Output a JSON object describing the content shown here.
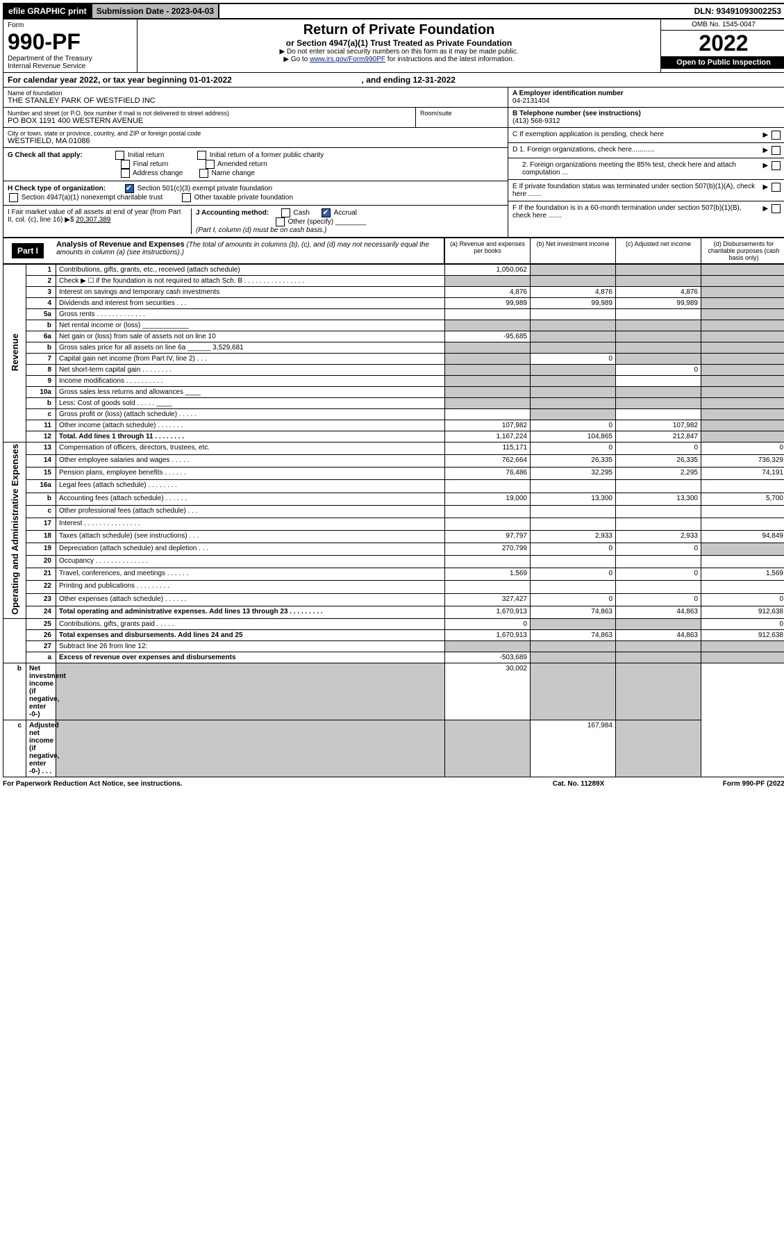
{
  "topbar": {
    "efile": "efile GRAPHIC print",
    "submission": "Submission Date - 2023-04-03",
    "dln": "DLN: 93491093002253"
  },
  "header": {
    "form_label": "Form",
    "form_no": "990-PF",
    "dept": "Department of the Treasury",
    "irs": "Internal Revenue Service",
    "title": "Return of Private Foundation",
    "sub1": "or Section 4947(a)(1) Trust Treated as Private Foundation",
    "sub2_a": "▶ Do not enter social security numbers on this form as it may be made public.",
    "sub2_b": "▶ Go to ",
    "sub2_link": "www.irs.gov/Form990PF",
    "sub2_c": " for instructions and the latest information.",
    "omb": "OMB No. 1545-0047",
    "year": "2022",
    "open": "Open to Public Inspection"
  },
  "cal_year": {
    "prefix": "For calendar year 2022, or tax year beginning ",
    "begin": "01-01-2022",
    "mid": " , and ending ",
    "end": "12-31-2022"
  },
  "foundation": {
    "name_label": "Name of foundation",
    "name": "THE STANLEY PARK OF WESTFIELD INC",
    "addr_label": "Number and street (or P.O. box number if mail is not delivered to street address)",
    "addr": "PO BOX 1191 400 WESTERN AVENUE",
    "room_label": "Room/suite",
    "city_label": "City or town, state or province, country, and ZIP or foreign postal code",
    "city": "WESTFIELD, MA  01086"
  },
  "right": {
    "a_label": "A Employer identification number",
    "a_val": "04-2131404",
    "b_label": "B Telephone number (see instructions)",
    "b_val": "(413) 568-9312",
    "c_label": "C If exemption application is pending, check here",
    "d1": "D 1. Foreign organizations, check here............",
    "d2": "2. Foreign organizations meeting the 85% test, check here and attach computation ...",
    "e": "E  If private foundation status was terminated under section 507(b)(1)(A), check here .......",
    "f": "F  If the foundation is in a 60-month termination under section 507(b)(1)(B), check here .......",
    "arrow": "▶"
  },
  "g": {
    "label": "G Check all that apply:",
    "opts": [
      "Initial return",
      "Final return",
      "Address change",
      "Initial return of a former public charity",
      "Amended return",
      "Name change"
    ]
  },
  "h": {
    "label": "H Check type of organization:",
    "opt1": "Section 501(c)(3) exempt private foundation",
    "opt2": "Section 4947(a)(1) nonexempt charitable trust",
    "opt3": "Other taxable private foundation"
  },
  "i": {
    "label_a": "I Fair market value of all assets at end of year (from Part II, col. (c), line 16) ",
    "arrow": "▶$ ",
    "value": "20,307,389"
  },
  "j": {
    "label": "J Accounting method:",
    "cash": "Cash",
    "accrual": "Accrual",
    "other": "Other (specify)",
    "note": "(Part I, column (d) must be on cash basis.)"
  },
  "part1": {
    "title": "Part I",
    "heading": "Analysis of Revenue and Expenses",
    "note": " (The total of amounts in columns (b), (c), and (d) may not necessarily equal the amounts in column (a) (see instructions).)",
    "col_a": "(a) Revenue and expenses per books",
    "col_b": "(b) Net investment income",
    "col_c": "(c) Adjusted net income",
    "col_d": "(d) Disbursements for charitable purposes (cash basis only)"
  },
  "side_labels": {
    "revenue": "Revenue",
    "expenses": "Operating and Administrative Expenses"
  },
  "rows": [
    {
      "n": "1",
      "desc": "Contributions, gifts, grants, etc., received (attach schedule)",
      "a": "1,050,062",
      "b": "",
      "c": "",
      "d": "",
      "grey": [
        "b",
        "c",
        "d"
      ]
    },
    {
      "n": "2",
      "desc": "Check ▶ ☐ if the foundation is not required to attach Sch. B  .  .  .  .  .  .  .  .  .  .  .  .  .  .  .  .",
      "a": "",
      "b": "",
      "c": "",
      "d": "",
      "grey": [
        "a",
        "b",
        "c",
        "d"
      ]
    },
    {
      "n": "3",
      "desc": "Interest on savings and temporary cash investments",
      "a": "4,876",
      "b": "4,876",
      "c": "4,876",
      "d": "",
      "grey": [
        "d"
      ]
    },
    {
      "n": "4",
      "desc": "Dividends and interest from securities  .  .  .",
      "a": "99,989",
      "b": "99,989",
      "c": "99,989",
      "d": "",
      "grey": [
        "d"
      ]
    },
    {
      "n": "5a",
      "desc": "Gross rents  .  .  .  .  .  .  .  .  .  .  .  .  .",
      "a": "",
      "b": "",
      "c": "",
      "d": "",
      "grey": [
        "d"
      ]
    },
    {
      "n": "b",
      "desc": "Net rental income or (loss)  ____________",
      "a": "",
      "b": "",
      "c": "",
      "d": "",
      "grey": [
        "a",
        "b",
        "c",
        "d"
      ]
    },
    {
      "n": "6a",
      "desc": "Net gain or (loss) from sale of assets not on line 10",
      "a": "-95,685",
      "b": "",
      "c": "",
      "d": "",
      "grey": [
        "b",
        "c",
        "d"
      ]
    },
    {
      "n": "b",
      "desc": "Gross sales price for all assets on line 6a ______ 3,529,681",
      "a": "",
      "b": "",
      "c": "",
      "d": "",
      "grey": [
        "a",
        "b",
        "c",
        "d"
      ]
    },
    {
      "n": "7",
      "desc": "Capital gain net income (from Part IV, line 2)  .  .  .",
      "a": "",
      "b": "0",
      "c": "",
      "d": "",
      "grey": [
        "a",
        "c",
        "d"
      ]
    },
    {
      "n": "8",
      "desc": "Net short-term capital gain  .  .  .  .  .  .  .  .",
      "a": "",
      "b": "",
      "c": "0",
      "d": "",
      "grey": [
        "a",
        "b",
        "d"
      ]
    },
    {
      "n": "9",
      "desc": "Income modifications  .  .  .  .  .  .  .  .  .  .",
      "a": "",
      "b": "",
      "c": "",
      "d": "",
      "grey": [
        "a",
        "b",
        "d"
      ]
    },
    {
      "n": "10a",
      "desc": "Gross sales less returns and allowances  ____",
      "a": "",
      "b": "",
      "c": "",
      "d": "",
      "grey": [
        "a",
        "b",
        "c",
        "d"
      ]
    },
    {
      "n": "b",
      "desc": "Less: Cost of goods sold  .  .  .  .  .  ____",
      "a": "",
      "b": "",
      "c": "",
      "d": "",
      "grey": [
        "a",
        "b",
        "c",
        "d"
      ]
    },
    {
      "n": "c",
      "desc": "Gross profit or (loss) (attach schedule)  .  .  .  .  .",
      "a": "",
      "b": "",
      "c": "",
      "d": "",
      "grey": [
        "b",
        "d"
      ]
    },
    {
      "n": "11",
      "desc": "Other income (attach schedule)  .  .  .  .  .  .  .",
      "a": "107,982",
      "b": "0",
      "c": "107,982",
      "d": "",
      "grey": [
        "d"
      ]
    },
    {
      "n": "12",
      "desc": "Total. Add lines 1 through 11  .  .  .  .  .  .  .  .",
      "bold": true,
      "a": "1,167,224",
      "b": "104,865",
      "c": "212,847",
      "d": "",
      "grey": [
        "d"
      ]
    },
    {
      "n": "13",
      "desc": "Compensation of officers, directors, trustees, etc.",
      "a": "115,171",
      "b": "0",
      "c": "0",
      "d": "0"
    },
    {
      "n": "14",
      "desc": "Other employee salaries and wages  .  .  .  .  .",
      "a": "762,664",
      "b": "26,335",
      "c": "26,335",
      "d": "736,329"
    },
    {
      "n": "15",
      "desc": "Pension plans, employee benefits  .  .  .  .  .  .",
      "a": "76,486",
      "b": "32,295",
      "c": "2,295",
      "d": "74,191"
    },
    {
      "n": "16a",
      "desc": "Legal fees (attach schedule)  .  .  .  .  .  .  .  .",
      "a": "",
      "b": "",
      "c": "",
      "d": ""
    },
    {
      "n": "b",
      "desc": "Accounting fees (attach schedule)  .  .  .  .  .  .",
      "a": "19,000",
      "b": "13,300",
      "c": "13,300",
      "d": "5,700"
    },
    {
      "n": "c",
      "desc": "Other professional fees (attach schedule)  .  .  .",
      "a": "",
      "b": "",
      "c": "",
      "d": ""
    },
    {
      "n": "17",
      "desc": "Interest  .  .  .  .  .  .  .  .  .  .  .  .  .  .  .",
      "a": "",
      "b": "",
      "c": "",
      "d": ""
    },
    {
      "n": "18",
      "desc": "Taxes (attach schedule) (see instructions)  .  .  .",
      "a": "97,797",
      "b": "2,933",
      "c": "2,933",
      "d": "94,849"
    },
    {
      "n": "19",
      "desc": "Depreciation (attach schedule) and depletion  .  .  .",
      "a": "270,799",
      "b": "0",
      "c": "0",
      "d": "",
      "grey": [
        "d"
      ]
    },
    {
      "n": "20",
      "desc": "Occupancy  .  .  .  .  .  .  .  .  .  .  .  .  .  .",
      "a": "",
      "b": "",
      "c": "",
      "d": ""
    },
    {
      "n": "21",
      "desc": "Travel, conferences, and meetings  .  .  .  .  .  .",
      "a": "1,569",
      "b": "0",
      "c": "0",
      "d": "1,569"
    },
    {
      "n": "22",
      "desc": "Printing and publications  .  .  .  .  .  .  .  .  .",
      "a": "",
      "b": "",
      "c": "",
      "d": ""
    },
    {
      "n": "23",
      "desc": "Other expenses (attach schedule)  .  .  .  .  .  .",
      "a": "327,427",
      "b": "0",
      "c": "0",
      "d": "0"
    },
    {
      "n": "24",
      "desc": "Total operating and administrative expenses. Add lines 13 through 23  .  .  .  .  .  .  .  .  .",
      "bold": true,
      "a": "1,670,913",
      "b": "74,863",
      "c": "44,863",
      "d": "912,638"
    },
    {
      "n": "25",
      "desc": "Contributions, gifts, grants paid  .  .  .  .  .",
      "a": "0",
      "b": "",
      "c": "",
      "d": "0",
      "grey": [
        "b",
        "c"
      ]
    },
    {
      "n": "26",
      "desc": "Total expenses and disbursements. Add lines 24 and 25",
      "bold": true,
      "a": "1,670,913",
      "b": "74,863",
      "c": "44,863",
      "d": "912,638"
    },
    {
      "n": "27",
      "desc": "Subtract line 26 from line 12:",
      "a": "",
      "b": "",
      "c": "",
      "d": "",
      "grey": [
        "a",
        "b",
        "c",
        "d"
      ]
    },
    {
      "n": "a",
      "desc": "Excess of revenue over expenses and disbursements",
      "bold": true,
      "a": "-503,689",
      "b": "",
      "c": "",
      "d": "",
      "grey": [
        "b",
        "c",
        "d"
      ]
    },
    {
      "n": "b",
      "desc": "Net investment income (if negative, enter -0-)",
      "bold": true,
      "a": "",
      "b": "30,002",
      "c": "",
      "d": "",
      "grey": [
        "a",
        "c",
        "d"
      ]
    },
    {
      "n": "c",
      "desc": "Adjusted net income (if negative, enter -0-)  .  .  .",
      "bold": true,
      "a": "",
      "b": "",
      "c": "167,984",
      "d": "",
      "grey": [
        "a",
        "b",
        "d"
      ]
    }
  ],
  "footer": {
    "left": "For Paperwork Reduction Act Notice, see instructions.",
    "mid": "Cat. No. 11289X",
    "right": "Form 990-PF (2022)"
  },
  "colors": {
    "black": "#000000",
    "grey_header": "#b8b8b8",
    "grey_cell": "#c8c8c8",
    "link": "#0020c0",
    "check": "#2d5cae"
  }
}
